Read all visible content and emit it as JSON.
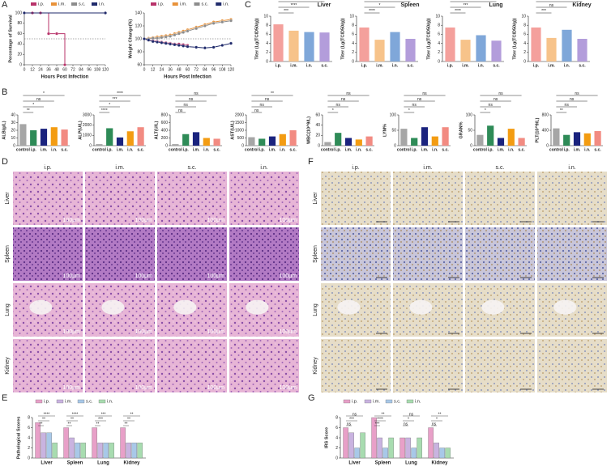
{
  "panel_labels": [
    "A",
    "B",
    "C",
    "D",
    "E",
    "F",
    "G"
  ],
  "chart_data": [
    {
      "type": "line",
      "step": true,
      "ylabel": "Percentage of Survival",
      "xlabel": "Hours Post Infection",
      "xlim": [
        0,
        120
      ],
      "xticks": [
        0,
        12,
        24,
        36,
        48,
        60,
        72,
        84,
        96,
        108,
        120
      ],
      "ylim": [
        0,
        100
      ],
      "yticks": [
        0,
        20,
        40,
        60,
        80,
        100
      ],
      "reference_line": 50,
      "series": [
        {
          "name": "i.p.",
          "color": "#b8336a",
          "x": [
            0,
            12,
            24,
            36,
            48,
            60
          ],
          "values": [
            100,
            100,
            100,
            60,
            60,
            0
          ]
        },
        {
          "name": "i.m.",
          "color": "#e8923a",
          "x": [
            0,
            120
          ],
          "values": [
            100,
            100
          ]
        },
        {
          "name": "s.c.",
          "color": "#8c8c8c",
          "x": [
            0,
            120
          ],
          "values": [
            100,
            100
          ]
        },
        {
          "name": "i.n.",
          "color": "#1f2a6b",
          "x": [
            0,
            120
          ],
          "values": [
            100,
            100
          ]
        }
      ]
    },
    {
      "type": "line",
      "ylabel": "Weight Change(%)",
      "xlabel": "Hours Post Infection",
      "xlim": [
        0,
        120
      ],
      "xticks": [
        0,
        12,
        24,
        36,
        48,
        60,
        72,
        84,
        96,
        108,
        120
      ],
      "ylim": [
        60,
        140
      ],
      "yticks": [
        60,
        80,
        100,
        120,
        140
      ],
      "reference_line": 100,
      "series": [
        {
          "name": "i.p.",
          "color": "#b8336a",
          "x": [
            0,
            6,
            12,
            18,
            24,
            30,
            36,
            42,
            48,
            54,
            60,
            72,
            84,
            96,
            108,
            120
          ],
          "values": [
            100,
            98,
            97,
            96,
            95,
            94,
            93,
            92,
            92,
            91,
            90,
            null,
            null,
            null,
            null,
            null
          ]
        },
        {
          "name": "i.m.",
          "color": "#e8923a",
          "x": [
            0,
            6,
            12,
            18,
            24,
            30,
            36,
            42,
            48,
            54,
            60,
            72,
            84,
            96,
            108,
            120
          ],
          "values": [
            100,
            101,
            102,
            103,
            104,
            105,
            106,
            108,
            110,
            112,
            114,
            118,
            122,
            126,
            128,
            130
          ]
        },
        {
          "name": "s.c.",
          "color": "#8c8c8c",
          "x": [
            0,
            6,
            12,
            18,
            24,
            30,
            36,
            42,
            48,
            54,
            60,
            72,
            84,
            96,
            108,
            120
          ],
          "values": [
            100,
            100,
            101,
            101,
            102,
            103,
            104,
            106,
            108,
            110,
            112,
            116,
            120,
            124,
            126,
            128
          ]
        },
        {
          "name": "i.n.",
          "color": "#1f2a6b",
          "x": [
            0,
            6,
            12,
            18,
            24,
            30,
            36,
            42,
            48,
            54,
            60,
            72,
            84,
            96,
            108,
            120
          ],
          "values": [
            100,
            98,
            96,
            95,
            94,
            93,
            92,
            91,
            90,
            89,
            88,
            87,
            86,
            87,
            90,
            93
          ]
        }
      ]
    },
    {
      "type": "bar",
      "ylabel": "ALB(g/L)",
      "categories": [
        "control",
        "i.p.",
        "i.m.",
        "i.n.",
        "s.c."
      ],
      "colors": [
        "#a6a6a6",
        "#2e8b57",
        "#1a237e",
        "#f39c12",
        "#f28b82"
      ],
      "values": [
        28,
        20,
        22,
        24,
        21
      ],
      "ylim": [
        0,
        40
      ],
      "yticks": [
        0,
        10,
        20,
        30,
        40
      ],
      "annotations": [
        "*",
        "ns",
        "*",
        "**"
      ]
    },
    {
      "type": "bar",
      "ylabel": "ALP(U/L)",
      "categories": [
        "control",
        "i.p.",
        "i.m.",
        "i.n.",
        "s.c."
      ],
      "colors": [
        "#a6a6a6",
        "#2e8b57",
        "#1a237e",
        "#f39c12",
        "#f28b82"
      ],
      "values": [
        150,
        1700,
        800,
        1400,
        1800
      ],
      "ylim": [
        0,
        3000
      ],
      "yticks": [
        0,
        1000,
        2000,
        3000
      ],
      "annotations": [
        "****",
        "***",
        "*",
        "****"
      ]
    },
    {
      "type": "bar",
      "ylabel": "ALT(U/L)",
      "categories": [
        "control",
        "i.p.",
        "i.m.",
        "i.n.",
        "s.c."
      ],
      "colors": [
        "#a6a6a6",
        "#2e8b57",
        "#1a237e",
        "#f39c12",
        "#f28b82"
      ],
      "values": [
        40,
        300,
        350,
        200,
        180
      ],
      "ylim": [
        0,
        800
      ],
      "yticks": [
        0,
        200,
        400,
        600,
        800
      ],
      "annotations": [
        "ns",
        "ns",
        "ns",
        "ns"
      ]
    },
    {
      "type": "bar",
      "ylabel": "AST(U/L)",
      "categories": [
        "control",
        "i.p.",
        "i.m.",
        "i.n.",
        "s.c."
      ],
      "colors": [
        "#a6a6a6",
        "#2e8b57",
        "#1a237e",
        "#f39c12",
        "#f28b82"
      ],
      "values": [
        550,
        450,
        600,
        750,
        1000
      ],
      "ylim": [
        0,
        2000
      ],
      "yticks": [
        0,
        500,
        1000,
        1500,
        2000
      ],
      "annotations": [
        "**",
        "ns",
        "ns",
        "ns"
      ]
    },
    {
      "type": "bar",
      "ylabel": "WBC(10^9/L)",
      "categories": [
        "control",
        "i.p.",
        "i.m.",
        "i.n.",
        "s.c."
      ],
      "colors": [
        "#a6a6a6",
        "#2e8b57",
        "#1a237e",
        "#f39c12",
        "#f28b82"
      ],
      "values": [
        7,
        25,
        15,
        12,
        18
      ],
      "ylim": [
        0,
        60
      ],
      "yticks": [
        0,
        20,
        40,
        60
      ],
      "annotations": [
        "ns",
        "ns",
        "ns",
        "*"
      ]
    },
    {
      "type": "bar",
      "ylabel": "LYM%",
      "categories": [
        "control",
        "i.p.",
        "i.m.",
        "i.n.",
        "s.c."
      ],
      "colors": [
        "#a6a6a6",
        "#2e8b57",
        "#1a237e",
        "#f39c12",
        "#f28b82"
      ],
      "values": [
        55,
        25,
        60,
        30,
        60
      ],
      "ylim": [
        0,
        100
      ],
      "yticks": [
        0,
        50,
        100
      ],
      "annotations": [
        "ns",
        "ns",
        "ns",
        "*"
      ]
    },
    {
      "type": "bar",
      "ylabel": "GRAN%",
      "categories": [
        "control",
        "i.p.",
        "i.m.",
        "i.n.",
        "s.c."
      ],
      "colors": [
        "#a6a6a6",
        "#2e8b57",
        "#1a237e",
        "#f39c12",
        "#f28b82"
      ],
      "values": [
        35,
        65,
        25,
        55,
        25
      ],
      "ylim": [
        0,
        100
      ],
      "yticks": [
        0,
        50,
        100
      ],
      "annotations": [
        "ns",
        "ns",
        "ns",
        "*"
      ]
    },
    {
      "type": "bar",
      "ylabel": "PLT(10^9/L)",
      "categories": [
        "control",
        "i.p.",
        "i.m.",
        "i.n.",
        "s.c."
      ],
      "colors": [
        "#a6a6a6",
        "#2e8b57",
        "#1a237e",
        "#f39c12",
        "#f28b82"
      ],
      "values": [
        450,
        280,
        350,
        320,
        380
      ],
      "ylim": [
        0,
        800
      ],
      "yticks": [
        0,
        400,
        800
      ],
      "annotations": [
        "ns",
        "ns",
        "ns",
        "**"
      ]
    },
    {
      "type": "bar",
      "title": "Liver",
      "ylabel": "Titer (Lg(TCID50/g))",
      "categories": [
        "i.p.",
        "i.m.",
        "i.n.",
        "s.c."
      ],
      "colors": [
        "#f4a09c",
        "#f7c38a",
        "#7fa7d9",
        "#b39ddb"
      ],
      "values": [
        8.2,
        6.8,
        6.5,
        6.4
      ],
      "ylim": [
        0,
        10
      ],
      "yticks": [
        0,
        2,
        4,
        6,
        8,
        10
      ],
      "annotations": [
        "****",
        "****",
        "***"
      ]
    },
    {
      "type": "bar",
      "title": "Spleen",
      "ylabel": "Titer (Lg(TCID50/g))",
      "categories": [
        "i.p.",
        "i.m.",
        "i.n.",
        "s.c."
      ],
      "colors": [
        "#f4a09c",
        "#f7c38a",
        "#7fa7d9",
        "#b39ddb"
      ],
      "values": [
        7.5,
        4.8,
        6.5,
        5.0
      ],
      "ylim": [
        0,
        10
      ],
      "yticks": [
        0,
        2,
        4,
        6,
        8,
        10
      ],
      "annotations": [
        "****",
        "*",
        "****"
      ]
    },
    {
      "type": "bar",
      "title": "Lung",
      "ylabel": "Titer (Lg(TCID50/g))",
      "categories": [
        "i.p.",
        "i.m.",
        "i.n.",
        "s.c."
      ],
      "colors": [
        "#f4a09c",
        "#f7c38a",
        "#7fa7d9",
        "#b39ddb"
      ],
      "values": [
        7.5,
        4.8,
        5.8,
        4.6
      ],
      "ylim": [
        0,
        10
      ],
      "yticks": [
        0,
        2,
        4,
        6,
        8,
        10
      ],
      "annotations": [
        "****",
        "***",
        "****"
      ]
    },
    {
      "type": "bar",
      "title": "Kidney",
      "ylabel": "Titer (Lg(TCID50/g))",
      "categories": [
        "i.p.",
        "i.m.",
        "i.n.",
        "s.c."
      ],
      "colors": [
        "#f4a09c",
        "#f7c38a",
        "#7fa7d9",
        "#b39ddb"
      ],
      "values": [
        7.5,
        5.2,
        7.0,
        5.0
      ],
      "ylim": [
        0,
        10
      ],
      "yticks": [
        0,
        2,
        4,
        6,
        8,
        10
      ],
      "annotations": [
        "***",
        "ns",
        "***"
      ]
    },
    {
      "type": "grouped_bar",
      "ylabel": "Pathological Scores",
      "categories": [
        "Liver",
        "Spleen",
        "Lung",
        "Kidney"
      ],
      "ylim": [
        0,
        8
      ],
      "yticks": [
        0,
        2,
        4,
        6,
        8
      ],
      "series": [
        {
          "name": "i.p.",
          "color": "#e8a0c8",
          "values": [
            7,
            6,
            6,
            6
          ]
        },
        {
          "name": "i.m.",
          "color": "#c9b3e0",
          "values": [
            5,
            4,
            3,
            3
          ]
        },
        {
          "name": "s.c.",
          "color": "#a8c8e8",
          "values": [
            5,
            3,
            3,
            3
          ]
        },
        {
          "name": "i.n.",
          "color": "#a8dcb0",
          "values": [
            3,
            3,
            3,
            3
          ]
        }
      ],
      "annotations": [
        [
          "****",
          "**",
          "**"
        ],
        [
          "****",
          "**",
          "**"
        ],
        [
          "***",
          "***",
          "**"
        ],
        [
          "**",
          "**",
          "**"
        ]
      ]
    },
    {
      "type": "grouped_bar",
      "ylabel": "IRS Score",
      "categories": [
        "Liver",
        "Spleen",
        "Lung",
        "Kidney"
      ],
      "ylim": [
        0,
        8
      ],
      "yticks": [
        0,
        2,
        4,
        6,
        8
      ],
      "series": [
        {
          "name": "i.p.",
          "color": "#e8a0c8",
          "values": [
            6,
            8,
            4,
            6
          ]
        },
        {
          "name": "i.m.",
          "color": "#c9b3e0",
          "values": [
            5,
            4,
            4,
            3
          ]
        },
        {
          "name": "s.c.",
          "color": "#a8c8e8",
          "values": [
            2,
            2,
            2,
            2
          ]
        },
        {
          "name": "i.n.",
          "color": "#a8dcb0",
          "values": [
            5,
            4,
            4,
            2
          ]
        }
      ],
      "annotations": [
        [
          "ns",
          "***",
          "ns"
        ],
        [
          "**",
          "****",
          "***"
        ],
        [
          "ns",
          "*",
          "ns"
        ],
        [
          "**",
          "*",
          "ns"
        ]
      ]
    }
  ],
  "histology": [
    {
      "columns": [
        "i.p.",
        "i.m.",
        "s.c.",
        "i.n."
      ],
      "rows": [
        "Liver",
        "Spleen",
        "Lung",
        "Kidney"
      ],
      "scale_bar": "100μm"
    },
    {
      "columns": [
        "i.p.",
        "i.m.",
        "s.c.",
        "i.n."
      ],
      "rows": [
        "Liver",
        "Spleen",
        "Lung",
        "Kidney"
      ]
    }
  ]
}
